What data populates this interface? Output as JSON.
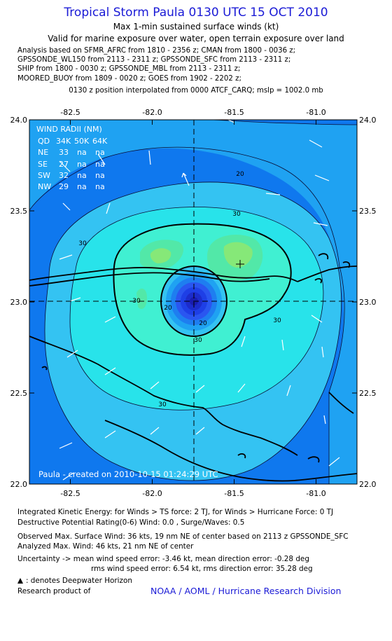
{
  "header": {
    "title": "Tropical Storm Paula 0130 UTC 15 OCT 2010",
    "subtitle": "Max 1-min sustained surface winds (kt)",
    "subtitle2": "Valid for marine exposure over water, open terrain exposure over land",
    "analysis_lines": [
      "Analysis based on SFMR_AFRC from 1810 - 2356 z; CMAN from 1800 - 0036 z;",
      "GPSSONDE_WL150 from 2113 - 2311 z; GPSSONDE_SFC from 2113 - 2311 z;",
      "SHIP from 1800 - 0030 z; GPSSONDE_MBL from 2113 - 2311 z;",
      "MOORED_BUOY from 1809 - 0020 z; GOES from 1902 - 2202 z;"
    ],
    "position_line": "0130 z position interpolated from 0000 ATCF_CARQ; mslp = 1002.0 mb"
  },
  "map": {
    "credit_text": "Paula - created on 2010-10-15 01:24:29 UTC",
    "contour_labels": [
      "20",
      "30",
      "20",
      "30",
      "30",
      "30",
      "20",
      "30",
      "30"
    ]
  },
  "wind_radii": {
    "title": "WIND RADII (NM)",
    "header": [
      "QD",
      "34K",
      "50K",
      "64K"
    ],
    "rows": [
      [
        "NE",
        "33",
        "na",
        "na"
      ],
      [
        "SE",
        "27",
        "na",
        "na"
      ],
      [
        "SW",
        "32",
        "na",
        "na"
      ],
      [
        "NW",
        "29",
        "na",
        "na"
      ]
    ]
  },
  "footer": {
    "ike": "Integrated Kinetic Energy:  for Winds > TS force: 2 TJ,  for Winds > Hurricane Force: 0 TJ",
    "dpr": "Destructive Potential Rating(0-6)   Wind: 0.0 , Surge/Waves: 0.5",
    "observed": "Observed Max. Surface Wind: 36 kts, 19 nm NE of center based on 2113 z GPSSONDE_SFC",
    "analyzed": "Analyzed Max. Wind: 46 kts, 21 nm NE of center",
    "uncertainty1": "Uncertainty -> mean wind speed error:  -3.46 kt,    mean direction error:  -0.28 deg",
    "uncertainty2": "rms wind speed error: 6.54 kt,   rms direction error: 35.28 deg",
    "deepwater": ": denotes Deepwater Horizon",
    "research": "Research product of",
    "org": "NOAA / AOML / Hurricane Research Division"
  },
  "colors": {
    "title": "#1a1ad6",
    "fill_levels": [
      "#0f78ee",
      "#1fa2f2",
      "#34c3f2",
      "#28e3ea",
      "#40f0d2",
      "#52e8a8",
      "#86e878"
    ],
    "core_levels": [
      "#2a56f0",
      "#1e3fe6",
      "#1c2ccc",
      "#191cb0"
    ]
  },
  "chart_data": {
    "type": "contour",
    "x_tick_labels": [
      "-82.5",
      "-82.0",
      "-81.5",
      "-81.0"
    ],
    "y_tick_labels": [
      "24.0",
      "23.5",
      "23.0",
      "22.5",
      "22.0"
    ],
    "xlim": [
      -82.75,
      -80.75
    ],
    "ylim": [
      22.0,
      24.0
    ],
    "x_ticks": [
      -82.5,
      -82.0,
      -81.5,
      -81.0
    ],
    "y_ticks": [
      24.0,
      23.5,
      23.0,
      22.5,
      22.0
    ],
    "center": {
      "lon": -81.75,
      "lat": 23.0
    },
    "max_wind_point": {
      "lon": -81.47,
      "lat": 23.2
    },
    "contour_levels_kt": [
      20,
      30,
      40
    ]
  }
}
